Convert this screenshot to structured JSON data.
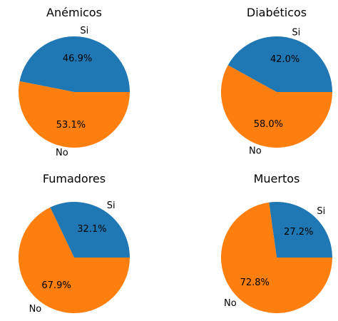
{
  "colors": {
    "si": "#1f77b4",
    "no": "#ff7f0e"
  },
  "chart_data": [
    {
      "type": "pie",
      "title": "Anémicos",
      "labels": [
        "Si",
        "No"
      ],
      "values": [
        46.9,
        53.1
      ],
      "value_labels": [
        "46.9%",
        "53.1%"
      ]
    },
    {
      "type": "pie",
      "title": "Diabéticos",
      "labels": [
        "Si",
        "No"
      ],
      "values": [
        42.0,
        58.0
      ],
      "value_labels": [
        "42.0%",
        "58.0%"
      ]
    },
    {
      "type": "pie",
      "title": "Fumadores",
      "labels": [
        "Si",
        "No"
      ],
      "values": [
        32.1,
        67.9
      ],
      "value_labels": [
        "32.1%",
        "67.9%"
      ]
    },
    {
      "type": "pie",
      "title": "Muertos",
      "labels": [
        "Si",
        "No"
      ],
      "values": [
        27.2,
        72.8
      ],
      "value_labels": [
        "27.2%",
        "72.8%"
      ]
    }
  ]
}
